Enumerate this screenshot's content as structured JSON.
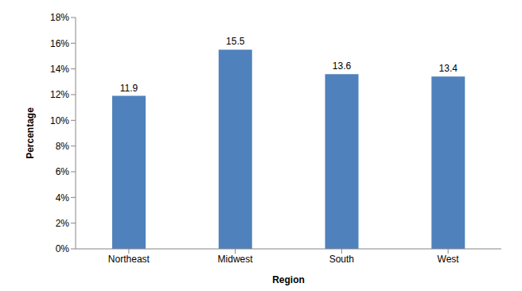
{
  "chart_data": {
    "type": "bar",
    "x_label": "Region",
    "y_label": "Percentage",
    "categories": [
      "Northeast",
      "Midwest",
      "South",
      "West"
    ],
    "values": [
      11.9,
      15.5,
      13.6,
      13.4
    ],
    "color": "#4f81bd",
    "ylim": [
      0,
      18
    ],
    "yticks": [
      {
        "value": 0,
        "label": "0%"
      },
      {
        "value": 2,
        "label": "2%"
      },
      {
        "value": 4,
        "label": "4%"
      },
      {
        "value": 6,
        "label": "6%"
      },
      {
        "value": 8,
        "label": "8%"
      },
      {
        "value": 10,
        "label": "10%"
      },
      {
        "value": 12,
        "label": "12%"
      },
      {
        "value": 14,
        "label": "14%"
      },
      {
        "value": 16,
        "label": "16%"
      },
      {
        "value": 18,
        "label": "18%"
      }
    ],
    "grid": false,
    "data_labels": true
  }
}
